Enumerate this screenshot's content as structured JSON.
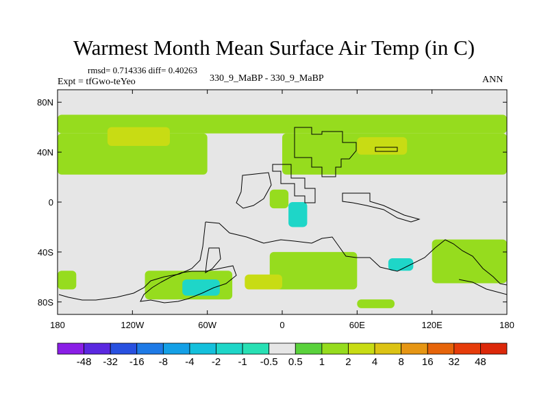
{
  "header": {
    "title": "Warmest Month Mean Surface Air Temp (in C)",
    "stats": "rmsd= 0.714336 diff= 0.40263",
    "experiment": "Expt = tfGwo-teYeo",
    "center_label": "330_9_MaBP - 330_9_MaBP",
    "season": "ANN"
  },
  "chart_data": {
    "type": "heatmap",
    "title": "Warmest Month Mean Surface Air Temp (in C)",
    "x_axis": {
      "range": [
        -180,
        180
      ],
      "ticks": [
        -180,
        -120,
        -60,
        0,
        60,
        120,
        180
      ],
      "tick_labels": [
        "180",
        "120W",
        "60W",
        "0",
        "60E",
        "120E",
        "180"
      ]
    },
    "y_axis": {
      "range": [
        -90,
        90
      ],
      "ticks": [
        80,
        40,
        0,
        -40,
        -80
      ],
      "tick_labels": [
        "80N",
        "40N",
        "0",
        "40S",
        "80S"
      ]
    },
    "colorbar": {
      "labels": [
        "-48",
        "-32",
        "-16",
        "-8",
        "-4",
        "-2",
        "-1",
        "-0.5",
        "0.5",
        "1",
        "2",
        "4",
        "8",
        "16",
        "32",
        "48"
      ],
      "colors": [
        "#8a1ee6",
        "#5a28e0",
        "#2850e0",
        "#1e7ae6",
        "#14a0e6",
        "#14c0dc",
        "#1ed6c8",
        "#28e0b4",
        "#e6e6e6",
        "#5ad23c",
        "#96dc1e",
        "#c8dc14",
        "#dcc314",
        "#e69614",
        "#e6640a",
        "#e63c0a",
        "#dc280a"
      ]
    },
    "background_value_color": "#e6e6e6",
    "regions": [
      {
        "level": "1",
        "lon": [
          -180,
          180
        ],
        "lat": [
          55,
          70
        ]
      },
      {
        "level": "1",
        "lon": [
          -180,
          -60
        ],
        "lat": [
          22,
          55
        ]
      },
      {
        "level": "1",
        "lon": [
          0,
          180
        ],
        "lat": [
          22,
          55
        ]
      },
      {
        "level": "2",
        "lon": [
          -140,
          -90
        ],
        "lat": [
          45,
          60
        ]
      },
      {
        "level": "2",
        "lon": [
          60,
          100
        ],
        "lat": [
          38,
          52
        ]
      },
      {
        "level": "1",
        "lon": [
          -180,
          -165
        ],
        "lat": [
          -70,
          -55
        ]
      },
      {
        "level": "1",
        "lon": [
          -110,
          -40
        ],
        "lat": [
          -78,
          -55
        ]
      },
      {
        "level": "1",
        "lon": [
          -10,
          60
        ],
        "lat": [
          -70,
          -40
        ]
      },
      {
        "level": "2",
        "lon": [
          -30,
          0
        ],
        "lat": [
          -70,
          -58
        ]
      },
      {
        "level": "1",
        "lon": [
          120,
          180
        ],
        "lat": [
          -65,
          -30
        ]
      },
      {
        "level": "-1",
        "lon": [
          -80,
          -50
        ],
        "lat": [
          -75,
          -62
        ]
      },
      {
        "level": "-1",
        "lon": [
          5,
          20
        ],
        "lat": [
          -20,
          0
        ]
      },
      {
        "level": "-1",
        "lon": [
          85,
          105
        ],
        "lat": [
          -55,
          -45
        ]
      },
      {
        "level": "1",
        "lon": [
          -10,
          5
        ],
        "lat": [
          -5,
          10
        ]
      },
      {
        "level": "1",
        "lon": [
          60,
          90
        ],
        "lat": [
          -85,
          -78
        ]
      }
    ]
  }
}
